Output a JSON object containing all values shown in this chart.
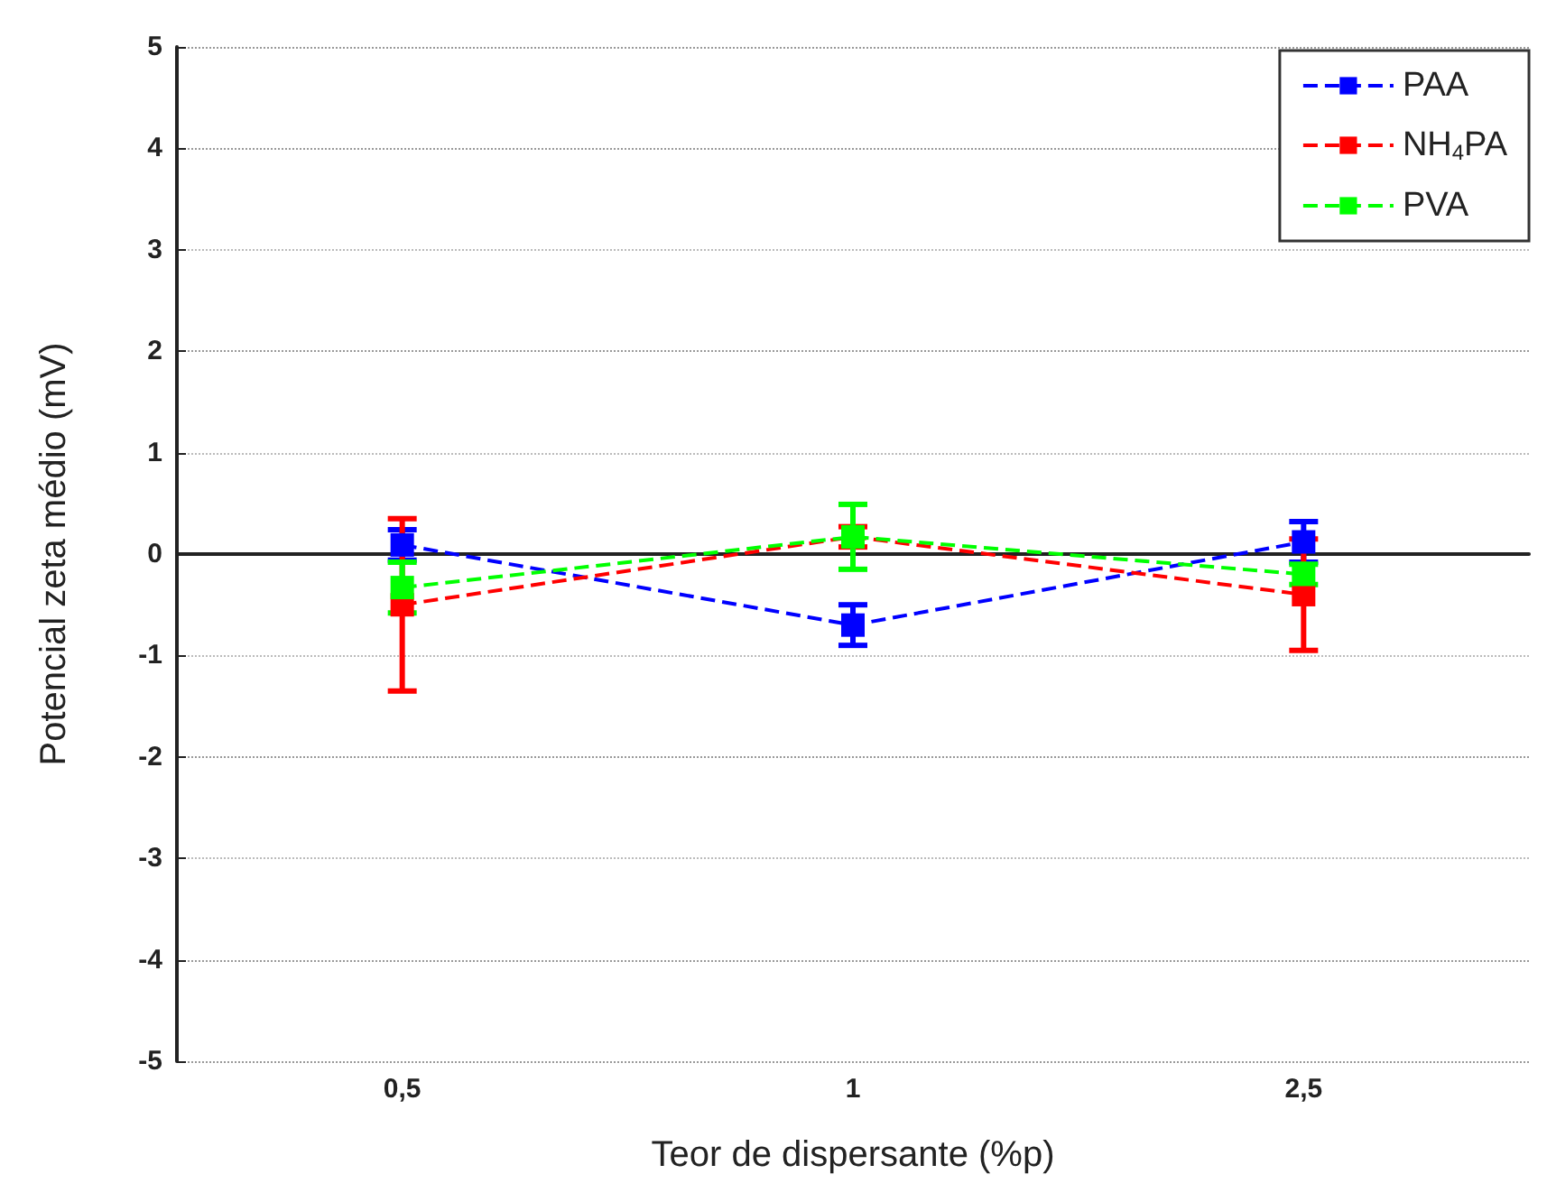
{
  "chart_data": {
    "type": "line",
    "xlabel": "Teor de dispersante (%p)",
    "ylabel": "Potencial zeta médio (mV)",
    "categories": [
      "0,5",
      "1",
      "2,5"
    ],
    "series": [
      {
        "name": "PAA",
        "color": "#0000ff",
        "values": [
          0.09,
          -0.7,
          0.12
        ],
        "errors": [
          0.15,
          0.2,
          0.2
        ]
      },
      {
        "name": "NH$_{4}$PA",
        "color": "#ff0000",
        "values": [
          -0.5,
          0.17,
          -0.4
        ],
        "errors": [
          0.85,
          0.1,
          0.55
        ]
      },
      {
        "name": "PVA",
        "color": "#00ff00",
        "values": [
          -0.33,
          0.17,
          -0.2
        ],
        "errors": [
          0.25,
          0.32,
          0.1
        ]
      }
    ],
    "ylim": [
      -5,
      5
    ],
    "yticks": [
      -5,
      -4,
      -3,
      -2,
      -1,
      0,
      1,
      2,
      3,
      4,
      5
    ],
    "grid": "y",
    "legend": "top right",
    "marker": "square",
    "line_style": "dashed"
  }
}
